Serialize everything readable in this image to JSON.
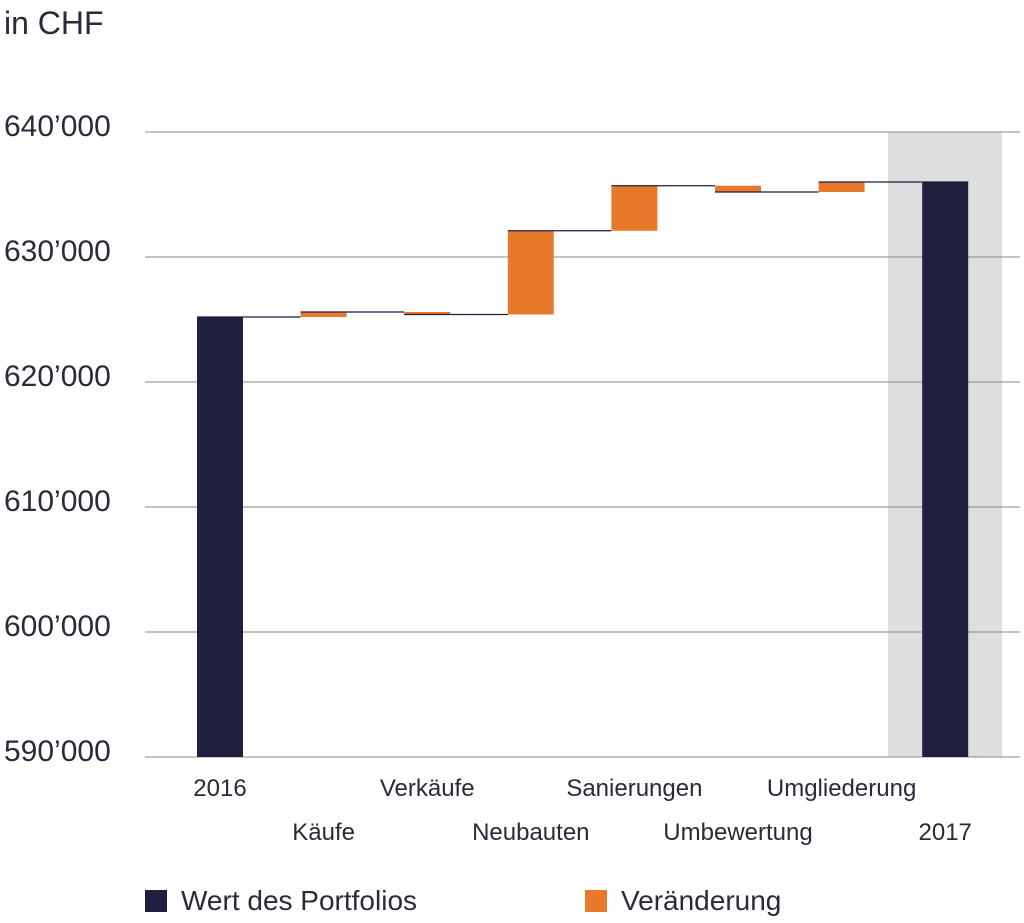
{
  "chart_data": {
    "type": "waterfall",
    "title": "in CHF",
    "categories": [
      "2016",
      "Käufe",
      "Verkäufe",
      "Neubauten",
      "Sanierungen",
      "Umbewertung",
      "Umgliederung",
      "2017"
    ],
    "series": [
      {
        "name": "Wert des Portfolios",
        "color": "#1f1f3f",
        "values": [
          625200,
          null,
          null,
          null,
          null,
          null,
          null,
          636000
        ]
      },
      {
        "name": "Veränderung",
        "color": "#e8792b",
        "values": [
          null,
          400,
          -200,
          6700,
          3600,
          -500,
          800,
          null
        ]
      }
    ],
    "ylim": [
      590000,
      640000
    ],
    "yticks": [
      {
        "value": 590000,
        "label": "590’000"
      },
      {
        "value": 600000,
        "label": "600’000"
      },
      {
        "value": 610000,
        "label": "610’000"
      },
      {
        "value": 620000,
        "label": "620’000"
      },
      {
        "value": 630000,
        "label": "630’000"
      },
      {
        "value": 640000,
        "label": "640’000"
      }
    ],
    "grid": true
  }
}
